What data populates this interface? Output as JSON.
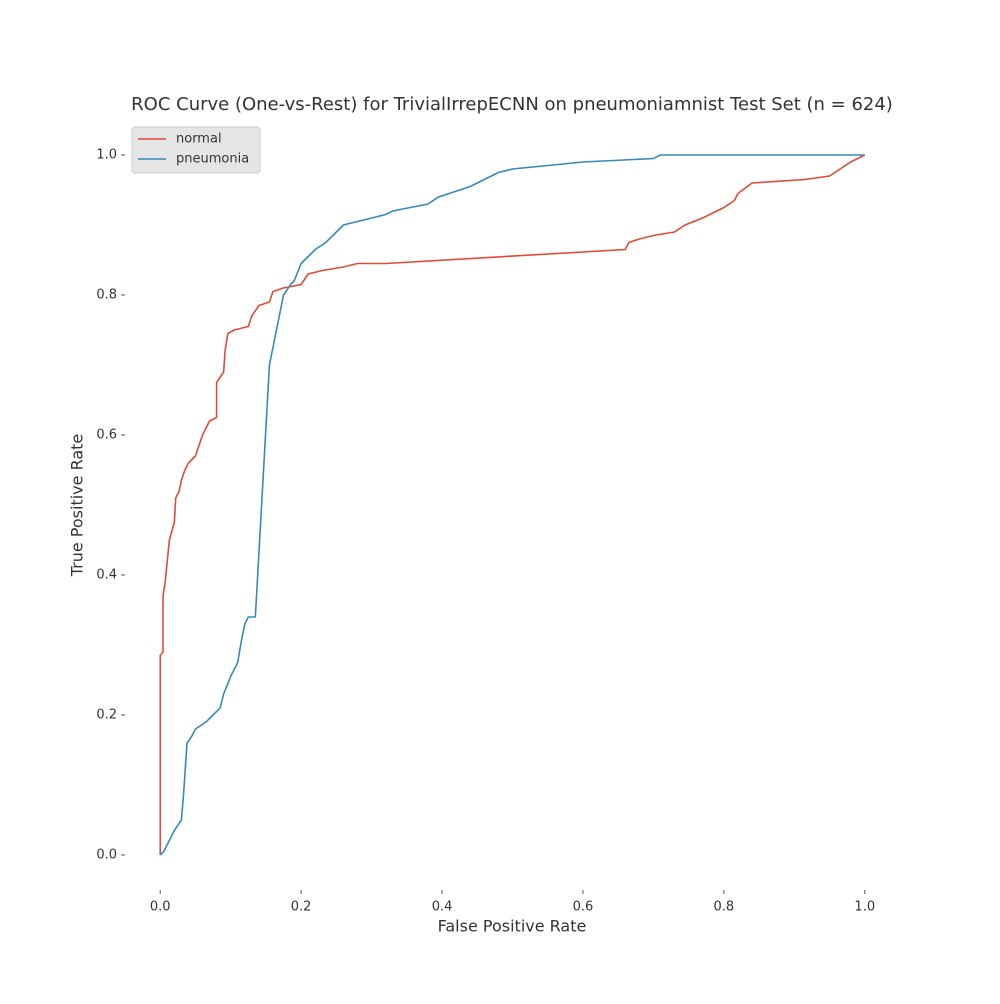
{
  "chart_data": {
    "type": "line",
    "title": "ROC Curve (One-vs-Rest) for TrivialIrrepECNN on pneumoniamnist Test Set (n = 624)",
    "x_label": "False Positive Rate",
    "y_label": "True Positive Rate",
    "xlim": [
      -0.05,
      1.05
    ],
    "ylim": [
      -0.05,
      1.05
    ],
    "xticks": [
      {
        "value": 0,
        "label": "0.0"
      },
      0.2,
      0.4,
      0.6,
      0.8,
      {
        "value": 1,
        "label": "1.0"
      }
    ],
    "yticks": [
      {
        "value": 0,
        "label": "0.0"
      },
      0.2,
      0.4,
      0.6,
      0.8,
      {
        "value": 1,
        "label": "1.0"
      }
    ],
    "legend": "upper left",
    "series": [
      {
        "name": "normal",
        "color": "#e24a33",
        "x": [
          0,
          0,
          0.004,
          0.004,
          0.007,
          0.01,
          0.013,
          0.02,
          0.022,
          0.027,
          0.03,
          0.035,
          0.04,
          0.05,
          0.055,
          0.06,
          0.065,
          0.07,
          0.08,
          0.08,
          0.09,
          0.092,
          0.096,
          0.105,
          0.125,
          0.13,
          0.14,
          0.155,
          0.16,
          0.175,
          0.2,
          0.21,
          0.23,
          0.26,
          0.28,
          0.32,
          0.66,
          0.665,
          0.68,
          0.7,
          0.73,
          0.745,
          0.77,
          0.79,
          0.8,
          0.815,
          0.82,
          0.84,
          0.915,
          0.95,
          0.965,
          0.98,
          0.99,
          1
        ],
        "values": [
          0,
          0.285,
          0.29,
          0.37,
          0.39,
          0.42,
          0.45,
          0.475,
          0.51,
          0.52,
          0.535,
          0.55,
          0.56,
          0.57,
          0.585,
          0.6,
          0.61,
          0.62,
          0.625,
          0.675,
          0.69,
          0.72,
          0.745,
          0.75,
          0.755,
          0.77,
          0.785,
          0.79,
          0.805,
          0.81,
          0.815,
          0.83,
          0.835,
          0.84,
          0.845,
          0.845,
          0.865,
          0.875,
          0.88,
          0.885,
          0.89,
          0.9,
          0.91,
          0.92,
          0.925,
          0.935,
          0.945,
          0.96,
          0.965,
          0.97,
          0.98,
          0.99,
          0.995,
          1
        ]
      },
      {
        "name": "pneumonia",
        "color": "#348abd",
        "x": [
          0,
          0.005,
          0.01,
          0.015,
          0.02,
          0.03,
          0.033,
          0.038,
          0.045,
          0.05,
          0.065,
          0.075,
          0.085,
          0.09,
          0.1,
          0.11,
          0.115,
          0.12,
          0.125,
          0.135,
          0.155,
          0.16,
          0.165,
          0.17,
          0.175,
          0.185,
          0.19,
          0.2,
          0.21,
          0.22,
          0.235,
          0.25,
          0.26,
          0.28,
          0.3,
          0.32,
          0.33,
          0.38,
          0.395,
          0.41,
          0.44,
          0.46,
          0.48,
          0.5,
          0.55,
          0.6,
          0.7,
          0.71,
          1
        ],
        "values": [
          0,
          0.005,
          0.015,
          0.025,
          0.035,
          0.05,
          0.085,
          0.16,
          0.17,
          0.18,
          0.19,
          0.2,
          0.21,
          0.23,
          0.255,
          0.275,
          0.305,
          0.33,
          0.34,
          0.34,
          0.7,
          0.725,
          0.75,
          0.775,
          0.8,
          0.815,
          0.82,
          0.845,
          0.855,
          0.865,
          0.875,
          0.89,
          0.9,
          0.905,
          0.91,
          0.915,
          0.92,
          0.93,
          0.94,
          0.945,
          0.955,
          0.965,
          0.975,
          0.98,
          0.985,
          0.99,
          0.995,
          1,
          1
        ]
      }
    ]
  }
}
